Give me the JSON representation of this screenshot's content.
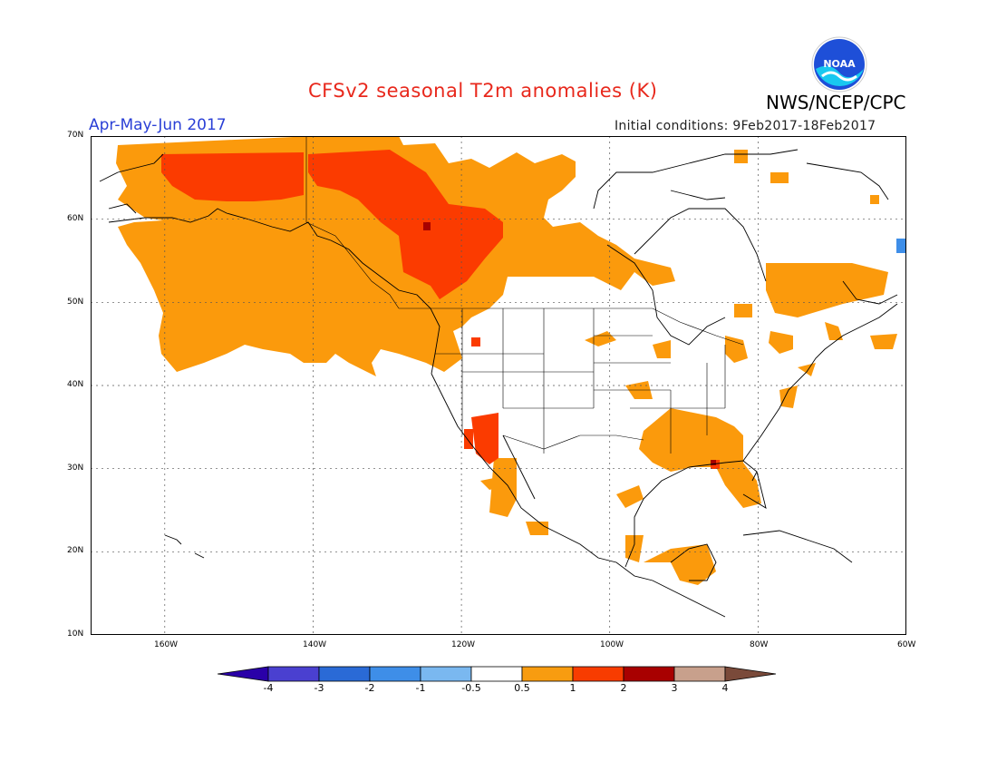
{
  "title": "CFSv2 seasonal T2m anomalies (K)",
  "agency": "NWS/NCEP/CPC",
  "logo_text": "NOAA",
  "season": "Apr-May-Jun 2017",
  "initial_conditions": "Initial conditions: 9Feb2017-18Feb2017",
  "lat_labels": [
    "70N",
    "60N",
    "50N",
    "40N",
    "30N",
    "20N",
    "10N"
  ],
  "lon_labels": [
    "160W",
    "140W",
    "120W",
    "100W",
    "80W",
    "60W"
  ],
  "colorbar": {
    "labels": [
      "-4",
      "-3",
      "-2",
      "-1",
      "-0.5",
      "0.5",
      "1",
      "2",
      "3",
      "4"
    ],
    "colors": [
      "#2a00a8",
      "#4a40d0",
      "#2a6ad6",
      "#3e8ee8",
      "#7ab8f0",
      "#ffffff",
      "#f89c10",
      "#f83c00",
      "#a80000",
      "#c8a08c",
      "#7a4a3a"
    ]
  },
  "colors": {
    "title": "#e8281c",
    "season": "#2a3fd6",
    "orange": "#fb9a0c",
    "red": "#fb3b00",
    "darkred": "#a80000",
    "blue": "#3e8ee8"
  }
}
